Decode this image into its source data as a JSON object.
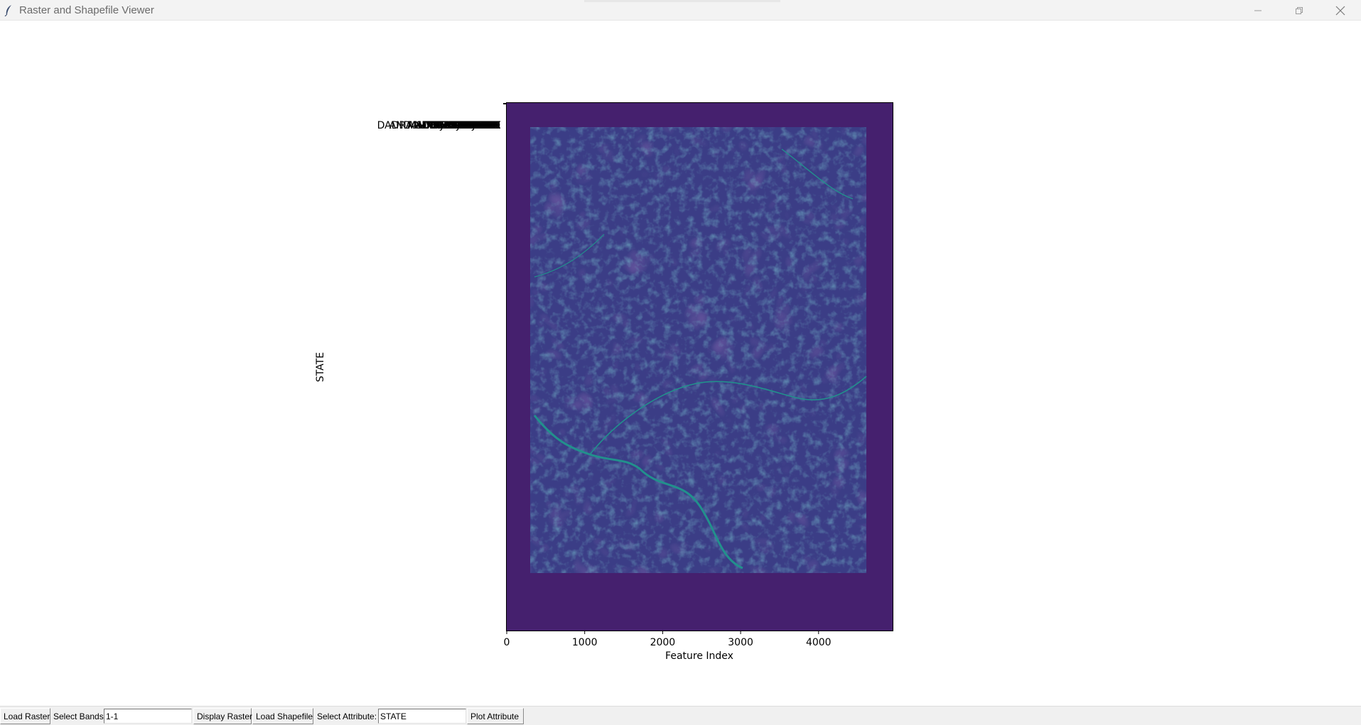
{
  "window": {
    "title": "Raster and Shapefile Viewer",
    "app_icon": "feather-icon"
  },
  "plot": {
    "xlabel": "Feature Index",
    "ylabel": "STATE",
    "x_ticks": [
      0,
      1000,
      2000,
      3000,
      4000
    ],
    "x_range": [
      0,
      4950
    ],
    "overlapping_ytick_labels": [
      "ANDAMAN & NICOBAR",
      "DADRA & NAGAR HAVELI",
      "DAMAN & DIU",
      "ANDHRA PRADESH",
      "ASSAM",
      "MADHYA PRADESH",
      "MAHARASHTRA",
      "MEGHALAYA",
      "MIZORAM",
      "NAGALAND",
      "ORISSA",
      "KARNATAKA",
      "KERALA",
      "GUJARAT",
      "HARYANA",
      "JHARKHAND",
      "RAJASTHAN",
      "TAMIL NADU",
      "TRIPURA",
      "UTTAR PRADESH",
      "WEST BENGAL"
    ],
    "colors": {
      "raster_background": "#45206e",
      "raster_map": "#3b3d86",
      "raster_stream": "#22908c"
    }
  },
  "toolbar": {
    "load_raster_label": "Load Raster",
    "select_bands_label": "Select Bands:",
    "select_bands_value": "1-1",
    "display_raster_label": "Display Raster",
    "load_shapefile_label": "Load Shapefile",
    "select_attribute_label": "Select Attribute:",
    "select_attribute_value": "STATE",
    "plot_attribute_label": "Plot Attribute"
  }
}
